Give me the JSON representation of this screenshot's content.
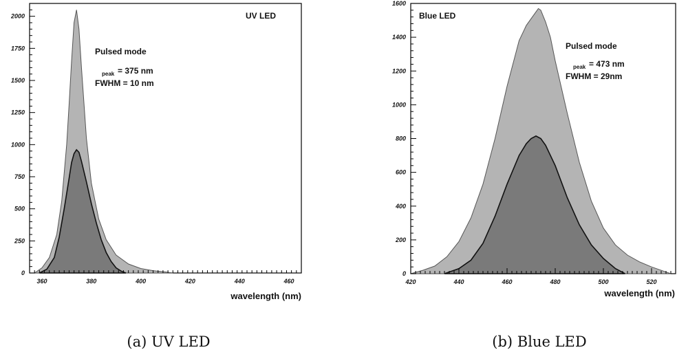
{
  "chart_data": [
    {
      "type": "area",
      "title": "UV LED",
      "xlabel": "wavelength (nm)",
      "ylabel": "",
      "xlim": [
        355,
        465
      ],
      "ylim": [
        0,
        2100
      ],
      "xticks": [
        "360",
        "380",
        "400",
        "420",
        "440",
        "460"
      ],
      "yticks": [
        "0",
        "250",
        "500",
        "750",
        "1000",
        "1250",
        "1500",
        "1750",
        "2000"
      ],
      "annotations": {
        "mode": "Pulsed mode",
        "peak_sub": "peak",
        "peak_text": "= 375 nm",
        "fwhm": "FWHM = 10 nm"
      },
      "caption": "(a) UV LED",
      "series": [
        {
          "x": [
            357,
            360,
            363,
            366,
            368,
            370,
            371,
            372,
            373,
            374,
            375,
            376,
            378,
            380,
            383,
            386,
            390,
            395,
            400,
            405,
            410,
            413
          ],
          "y": [
            0,
            40,
            120,
            300,
            560,
            1000,
            1320,
            1650,
            1950,
            2050,
            1900,
            1600,
            1050,
            700,
            420,
            260,
            140,
            70,
            35,
            18,
            8,
            0
          ]
        },
        {
          "x": [
            359,
            362,
            365,
            367,
            369,
            371,
            372,
            373,
            374,
            375,
            376,
            378,
            380,
            382,
            384,
            386,
            388,
            390,
            392,
            394
          ],
          "y": [
            0,
            30,
            120,
            280,
            500,
            740,
            860,
            930,
            960,
            940,
            870,
            710,
            540,
            390,
            260,
            160,
            90,
            40,
            15,
            0
          ]
        }
      ]
    },
    {
      "type": "area",
      "title": "Blue LED",
      "xlabel": "wavelength (nm)",
      "ylabel": "",
      "xlim": [
        420,
        530
      ],
      "ylim": [
        0,
        1600
      ],
      "xticks": [
        "420",
        "440",
        "460",
        "480",
        "500",
        "520"
      ],
      "yticks": [
        "0",
        "200",
        "400",
        "600",
        "800",
        "1000",
        "1200",
        "1400",
        "1600"
      ],
      "annotations": {
        "mode": "Pulsed mode",
        "peak_sub": "peak",
        "peak_text": "= 473 nm",
        "fwhm": "FWHM = 29nm"
      },
      "caption": "(b) Blue LED",
      "series": [
        {
          "x": [
            420,
            425,
            430,
            435,
            440,
            445,
            450,
            455,
            460,
            465,
            468,
            470,
            472,
            473,
            474,
            476,
            478,
            480,
            485,
            490,
            495,
            500,
            505,
            510,
            515,
            520,
            525,
            528
          ],
          "y": [
            0,
            20,
            45,
            100,
            190,
            330,
            530,
            800,
            1110,
            1380,
            1470,
            1510,
            1550,
            1570,
            1560,
            1490,
            1400,
            1260,
            950,
            660,
            430,
            270,
            170,
            110,
            70,
            40,
            15,
            0
          ]
        },
        {
          "x": [
            434,
            440,
            445,
            450,
            455,
            460,
            465,
            468,
            470,
            472,
            474,
            476,
            480,
            485,
            490,
            495,
            500,
            505,
            509
          ],
          "y": [
            0,
            30,
            80,
            180,
            340,
            530,
            700,
            770,
            800,
            815,
            800,
            760,
            640,
            450,
            290,
            170,
            90,
            30,
            0
          ]
        }
      ]
    }
  ]
}
